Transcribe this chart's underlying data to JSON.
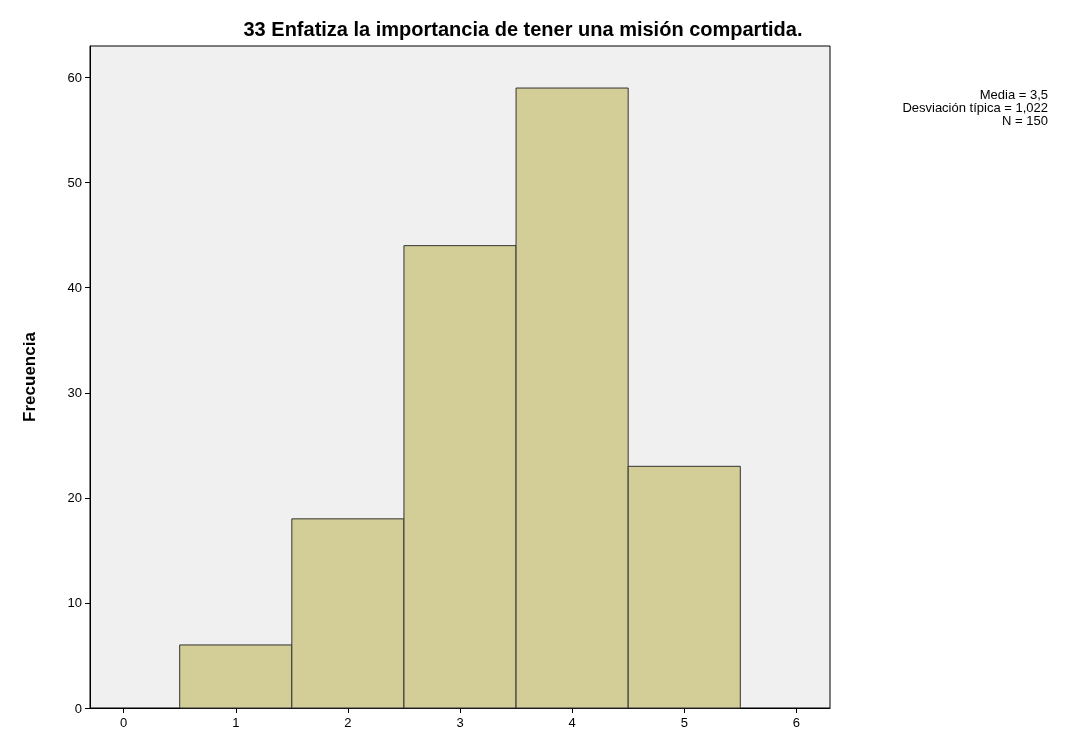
{
  "chart_data": {
    "type": "histogram",
    "title": "33 Enfatiza la importancia de tener una misión compartida.",
    "ylabel": "Frecuencia",
    "bins": [
      0.5,
      1.5,
      2.5,
      3.5,
      4.5,
      5.5
    ],
    "values": [
      6,
      18,
      44,
      59,
      23
    ],
    "color": "#d3ce97",
    "xlim": [
      -0.3,
      6.3
    ],
    "xticks": [
      0,
      1,
      2,
      3,
      4,
      5,
      6
    ],
    "ylim": [
      0,
      63
    ],
    "yticks": [
      0,
      10,
      20,
      30,
      40,
      50,
      60
    ],
    "grid": false,
    "annotations": [
      "Media = 3,5",
      "Desviación típica = 1,022",
      "N = 150"
    ]
  }
}
